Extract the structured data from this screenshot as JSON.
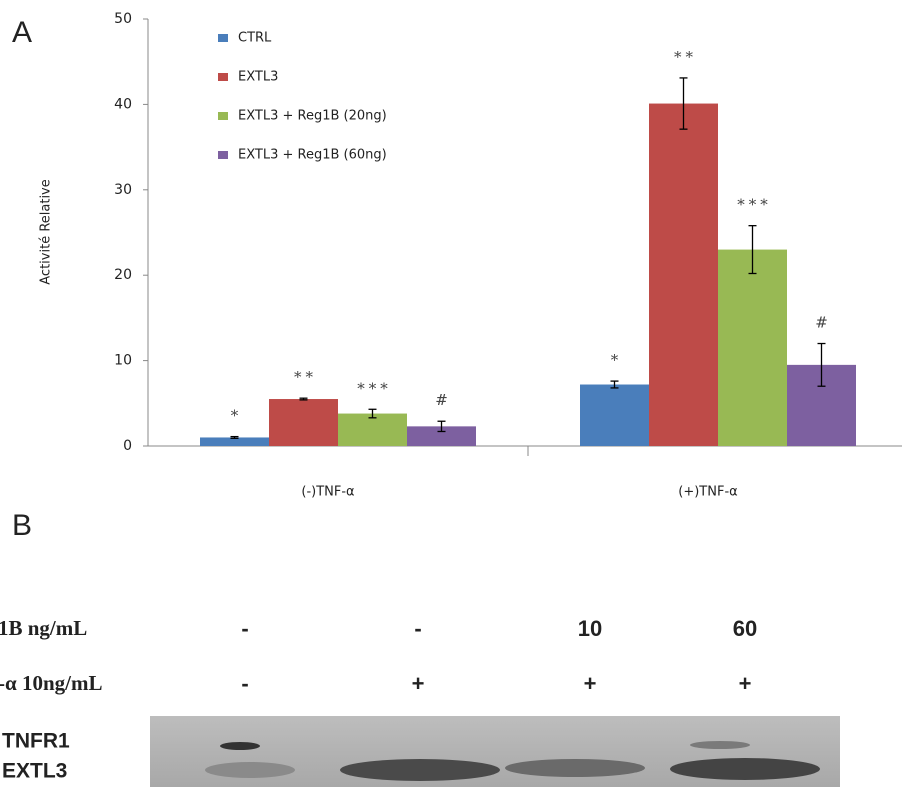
{
  "chart_data": {
    "type": "bar",
    "panel_label": "A",
    "ylabel": "Activité Relative",
    "categories": [
      "(-)TNF-α",
      "(+)TNF-α"
    ],
    "series": [
      {
        "name": "CTRL",
        "color": "#4a7ebb",
        "values": [
          1.0,
          7.2
        ],
        "errors": [
          0.1,
          0.4
        ],
        "significance": [
          "*",
          "*"
        ]
      },
      {
        "name": "EXTL3",
        "color": "#be4b48",
        "values": [
          5.5,
          40.1
        ],
        "errors": [
          0.1,
          3.0
        ],
        "significance": [
          "**",
          "**"
        ]
      },
      {
        "name": "EXTL3 + Reg1B (20ng)",
        "color": "#98b954",
        "values": [
          3.8,
          23.0
        ],
        "errors": [
          0.5,
          2.8
        ],
        "significance": [
          "***",
          "***"
        ]
      },
      {
        "name": "EXTL3 + Reg1B (60ng)",
        "color": "#7d60a0",
        "values": [
          2.3,
          9.5
        ],
        "errors": [
          0.6,
          2.5
        ],
        "significance": [
          "#",
          "#"
        ]
      }
    ],
    "ylim": [
      0,
      50
    ],
    "yticks": [
      0,
      10,
      20,
      30,
      40,
      50
    ],
    "grid": false,
    "legend": "top-left"
  },
  "panel_b": {
    "panel_label": "B",
    "rows": [
      {
        "label": "1B ng/mL",
        "cells": [
          "-",
          "-",
          "10",
          "60"
        ]
      },
      {
        "label": "-α 10ng/mL",
        "cells": [
          "-",
          "+",
          "+",
          "+"
        ]
      }
    ],
    "bands": [
      "TNFR1",
      "EXTL3"
    ]
  }
}
